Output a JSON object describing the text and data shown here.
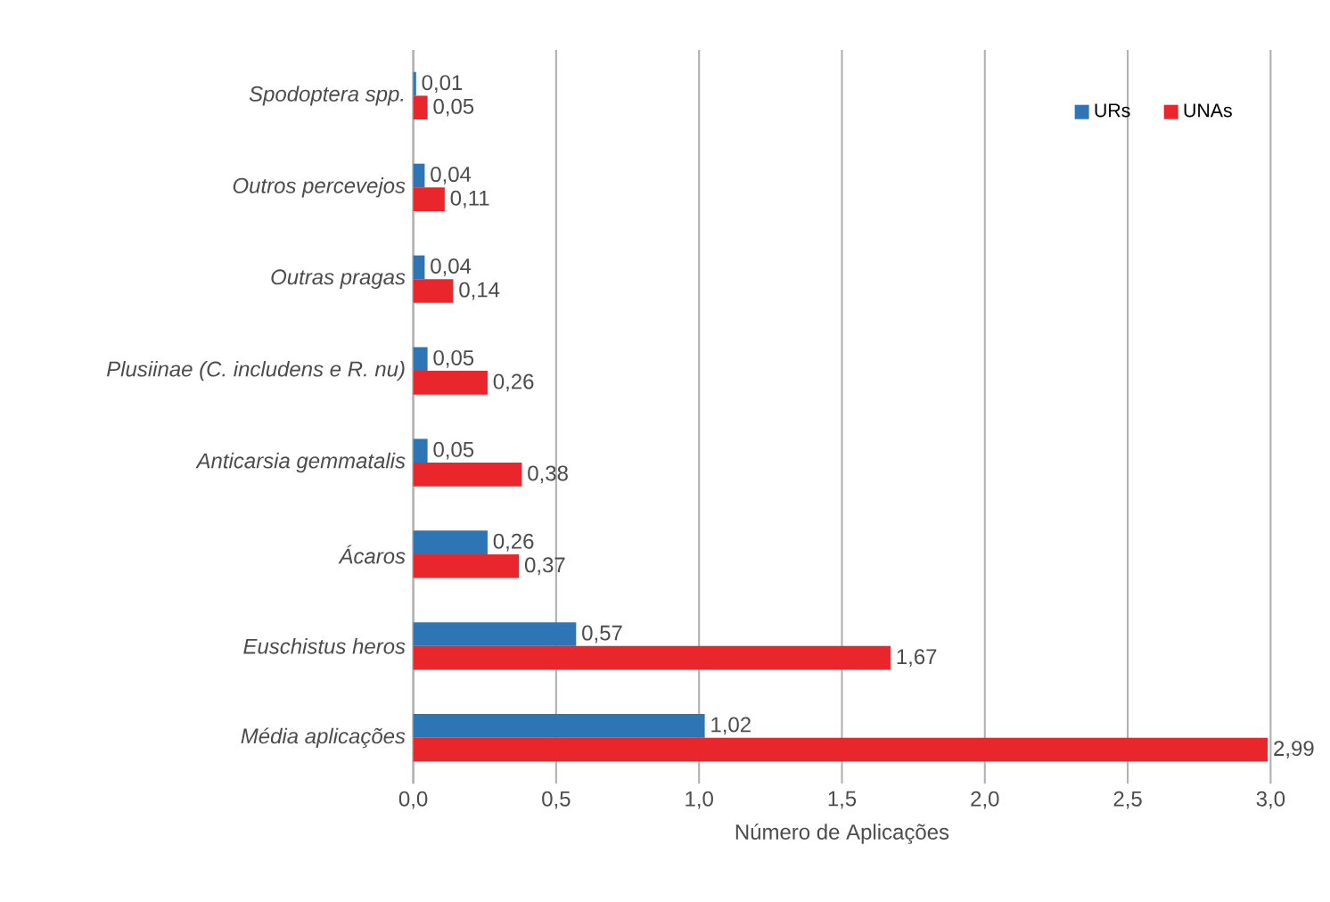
{
  "chart_data": {
    "type": "bar",
    "orientation": "horizontal",
    "categories": [
      "Spodoptera spp.",
      "Outros percevejos",
      "Outras pragas",
      "Plusiinae (C. includens e R. nu)",
      "Anticarsia gemmatalis",
      "Ácaros",
      "Euschistus heros",
      "Média aplicações"
    ],
    "series": [
      {
        "name": "URs",
        "color": "#2e75b6",
        "values": [
          0.01,
          0.04,
          0.04,
          0.05,
          0.05,
          0.26,
          0.57,
          1.02
        ],
        "value_labels": [
          "0,01",
          "0,04",
          "0,04",
          "0,05",
          "0,05",
          "0,26",
          "0,57",
          "1,02"
        ]
      },
      {
        "name": "UNAs",
        "color": "#e8262b",
        "values": [
          0.05,
          0.11,
          0.14,
          0.26,
          0.38,
          0.37,
          1.67,
          2.99
        ],
        "value_labels": [
          "0,05",
          "0,11",
          "0,14",
          "0,26",
          "0,38",
          "0,37",
          "1,67",
          "2,99"
        ]
      }
    ],
    "xlabel": "Número de Aplicações",
    "xlim": [
      0,
      3
    ],
    "xticks": [
      {
        "value": 0,
        "label": "0,0"
      },
      {
        "value": 0.5,
        "label": "0,5"
      },
      {
        "value": 1,
        "label": "1,0"
      },
      {
        "value": 1.5,
        "label": "1,5"
      },
      {
        "value": 2,
        "label": "2,0"
      },
      {
        "value": 2.5,
        "label": "2,5"
      },
      {
        "value": 3,
        "label": "3,0"
      }
    ],
    "grid": "x",
    "legend": "top right"
  }
}
